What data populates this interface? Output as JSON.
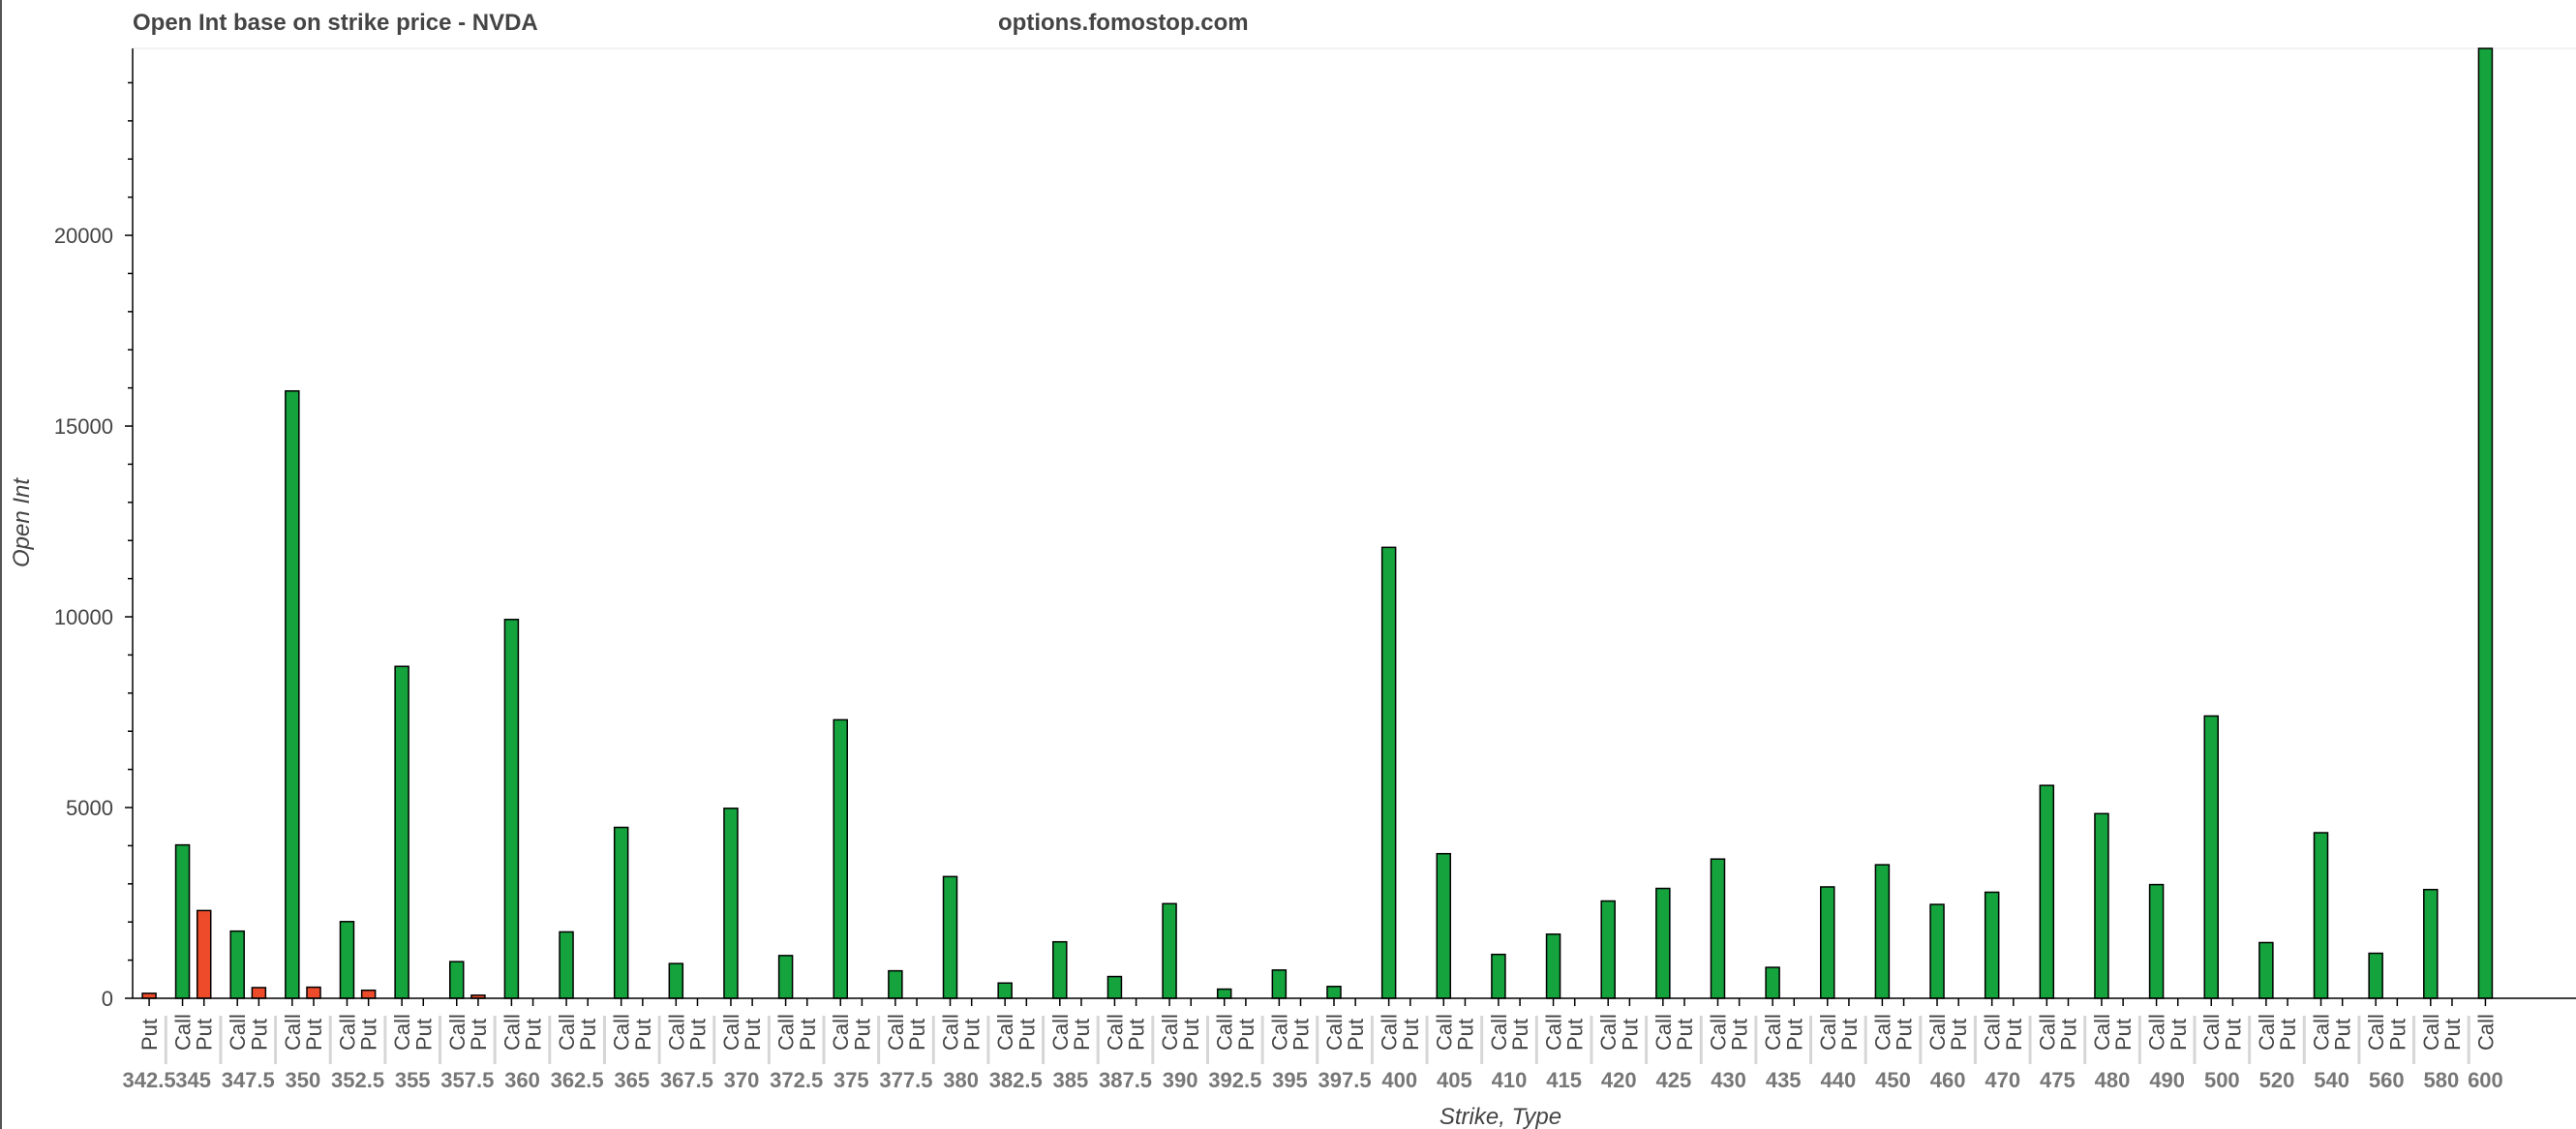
{
  "header": {
    "title": "Open Int base on strike price - NVDA",
    "site": "options.fomostop.com"
  },
  "colors": {
    "call": "#14a33c",
    "put": "#ee4b2b",
    "bar_stroke": "#000000",
    "axis": "#000000",
    "text": "#444444",
    "group_text": "#777777"
  },
  "chart_data": {
    "type": "bar",
    "title": "Open Int base on strike price - NVDA",
    "xlabel": "Strike, Type",
    "ylabel": "Open Int",
    "ylim": [
      0,
      24900
    ],
    "yticks": [
      0,
      5000,
      10000,
      15000,
      20000
    ],
    "grid": false,
    "groups": [
      {
        "strike": "342.5",
        "bars": [
          {
            "type": "Put",
            "value": 130
          }
        ]
      },
      {
        "strike": "345",
        "bars": [
          {
            "type": "Call",
            "value": 4020
          },
          {
            "type": "Put",
            "value": 2300
          }
        ]
      },
      {
        "strike": "347.5",
        "bars": [
          {
            "type": "Call",
            "value": 1760
          },
          {
            "type": "Put",
            "value": 280
          }
        ]
      },
      {
        "strike": "350",
        "bars": [
          {
            "type": "Call",
            "value": 15920
          },
          {
            "type": "Put",
            "value": 290
          }
        ]
      },
      {
        "strike": "352.5",
        "bars": [
          {
            "type": "Call",
            "value": 2010
          },
          {
            "type": "Put",
            "value": 210
          }
        ]
      },
      {
        "strike": "355",
        "bars": [
          {
            "type": "Call",
            "value": 8700
          },
          {
            "type": "Put",
            "value": 0
          }
        ]
      },
      {
        "strike": "357.5",
        "bars": [
          {
            "type": "Call",
            "value": 960
          },
          {
            "type": "Put",
            "value": 80
          }
        ]
      },
      {
        "strike": "360",
        "bars": [
          {
            "type": "Call",
            "value": 9930
          },
          {
            "type": "Put",
            "value": 0
          }
        ]
      },
      {
        "strike": "362.5",
        "bars": [
          {
            "type": "Call",
            "value": 1740
          },
          {
            "type": "Put",
            "value": 0
          }
        ]
      },
      {
        "strike": "365",
        "bars": [
          {
            "type": "Call",
            "value": 4480
          },
          {
            "type": "Put",
            "value": 0
          }
        ]
      },
      {
        "strike": "367.5",
        "bars": [
          {
            "type": "Call",
            "value": 910
          },
          {
            "type": "Put",
            "value": 0
          }
        ]
      },
      {
        "strike": "370",
        "bars": [
          {
            "type": "Call",
            "value": 4980
          },
          {
            "type": "Put",
            "value": 0
          }
        ]
      },
      {
        "strike": "372.5",
        "bars": [
          {
            "type": "Call",
            "value": 1120
          },
          {
            "type": "Put",
            "value": 0
          }
        ]
      },
      {
        "strike": "375",
        "bars": [
          {
            "type": "Call",
            "value": 7300
          },
          {
            "type": "Put",
            "value": 0
          }
        ]
      },
      {
        "strike": "377.5",
        "bars": [
          {
            "type": "Call",
            "value": 720
          },
          {
            "type": "Put",
            "value": 0
          }
        ]
      },
      {
        "strike": "380",
        "bars": [
          {
            "type": "Call",
            "value": 3190
          },
          {
            "type": "Put",
            "value": 0
          }
        ]
      },
      {
        "strike": "382.5",
        "bars": [
          {
            "type": "Call",
            "value": 400
          },
          {
            "type": "Put",
            "value": 0
          }
        ]
      },
      {
        "strike": "385",
        "bars": [
          {
            "type": "Call",
            "value": 1480
          },
          {
            "type": "Put",
            "value": 0
          }
        ]
      },
      {
        "strike": "387.5",
        "bars": [
          {
            "type": "Call",
            "value": 570
          },
          {
            "type": "Put",
            "value": 0
          }
        ]
      },
      {
        "strike": "390",
        "bars": [
          {
            "type": "Call",
            "value": 2480
          },
          {
            "type": "Put",
            "value": 0
          }
        ]
      },
      {
        "strike": "392.5",
        "bars": [
          {
            "type": "Call",
            "value": 240
          },
          {
            "type": "Put",
            "value": 0
          }
        ]
      },
      {
        "strike": "395",
        "bars": [
          {
            "type": "Call",
            "value": 740
          },
          {
            "type": "Put",
            "value": 0
          }
        ]
      },
      {
        "strike": "397.5",
        "bars": [
          {
            "type": "Call",
            "value": 310
          },
          {
            "type": "Put",
            "value": 0
          }
        ]
      },
      {
        "strike": "400",
        "bars": [
          {
            "type": "Call",
            "value": 11820
          },
          {
            "type": "Put",
            "value": 0
          }
        ]
      },
      {
        "strike": "405",
        "bars": [
          {
            "type": "Call",
            "value": 3790
          },
          {
            "type": "Put",
            "value": 0
          }
        ]
      },
      {
        "strike": "410",
        "bars": [
          {
            "type": "Call",
            "value": 1150
          },
          {
            "type": "Put",
            "value": 0
          }
        ]
      },
      {
        "strike": "415",
        "bars": [
          {
            "type": "Call",
            "value": 1680
          },
          {
            "type": "Put",
            "value": 0
          }
        ]
      },
      {
        "strike": "420",
        "bars": [
          {
            "type": "Call",
            "value": 2550
          },
          {
            "type": "Put",
            "value": 0
          }
        ]
      },
      {
        "strike": "425",
        "bars": [
          {
            "type": "Call",
            "value": 2880
          },
          {
            "type": "Put",
            "value": 0
          }
        ]
      },
      {
        "strike": "430",
        "bars": [
          {
            "type": "Call",
            "value": 3650
          },
          {
            "type": "Put",
            "value": 0
          }
        ]
      },
      {
        "strike": "435",
        "bars": [
          {
            "type": "Call",
            "value": 810
          },
          {
            "type": "Put",
            "value": 0
          }
        ]
      },
      {
        "strike": "440",
        "bars": [
          {
            "type": "Call",
            "value": 2920
          },
          {
            "type": "Put",
            "value": 0
          }
        ]
      },
      {
        "strike": "450",
        "bars": [
          {
            "type": "Call",
            "value": 3500
          },
          {
            "type": "Put",
            "value": 0
          }
        ]
      },
      {
        "strike": "460",
        "bars": [
          {
            "type": "Call",
            "value": 2460
          },
          {
            "type": "Put",
            "value": 0
          }
        ]
      },
      {
        "strike": "470",
        "bars": [
          {
            "type": "Call",
            "value": 2780
          },
          {
            "type": "Put",
            "value": 0
          }
        ]
      },
      {
        "strike": "475",
        "bars": [
          {
            "type": "Call",
            "value": 5580
          },
          {
            "type": "Put",
            "value": 0
          }
        ]
      },
      {
        "strike": "480",
        "bars": [
          {
            "type": "Call",
            "value": 4840
          },
          {
            "type": "Put",
            "value": 0
          }
        ]
      },
      {
        "strike": "490",
        "bars": [
          {
            "type": "Call",
            "value": 2980
          },
          {
            "type": "Put",
            "value": 0
          }
        ]
      },
      {
        "strike": "500",
        "bars": [
          {
            "type": "Call",
            "value": 7400
          },
          {
            "type": "Put",
            "value": 0
          }
        ]
      },
      {
        "strike": "520",
        "bars": [
          {
            "type": "Call",
            "value": 1460
          },
          {
            "type": "Put",
            "value": 0
          }
        ]
      },
      {
        "strike": "540",
        "bars": [
          {
            "type": "Call",
            "value": 4340
          },
          {
            "type": "Put",
            "value": 0
          }
        ]
      },
      {
        "strike": "560",
        "bars": [
          {
            "type": "Call",
            "value": 1180
          },
          {
            "type": "Put",
            "value": 0
          }
        ]
      },
      {
        "strike": "580",
        "bars": [
          {
            "type": "Call",
            "value": 2850
          },
          {
            "type": "Put",
            "value": 0
          }
        ]
      },
      {
        "strike": "600",
        "bars": [
          {
            "type": "Call",
            "value": 24900
          }
        ]
      }
    ]
  }
}
